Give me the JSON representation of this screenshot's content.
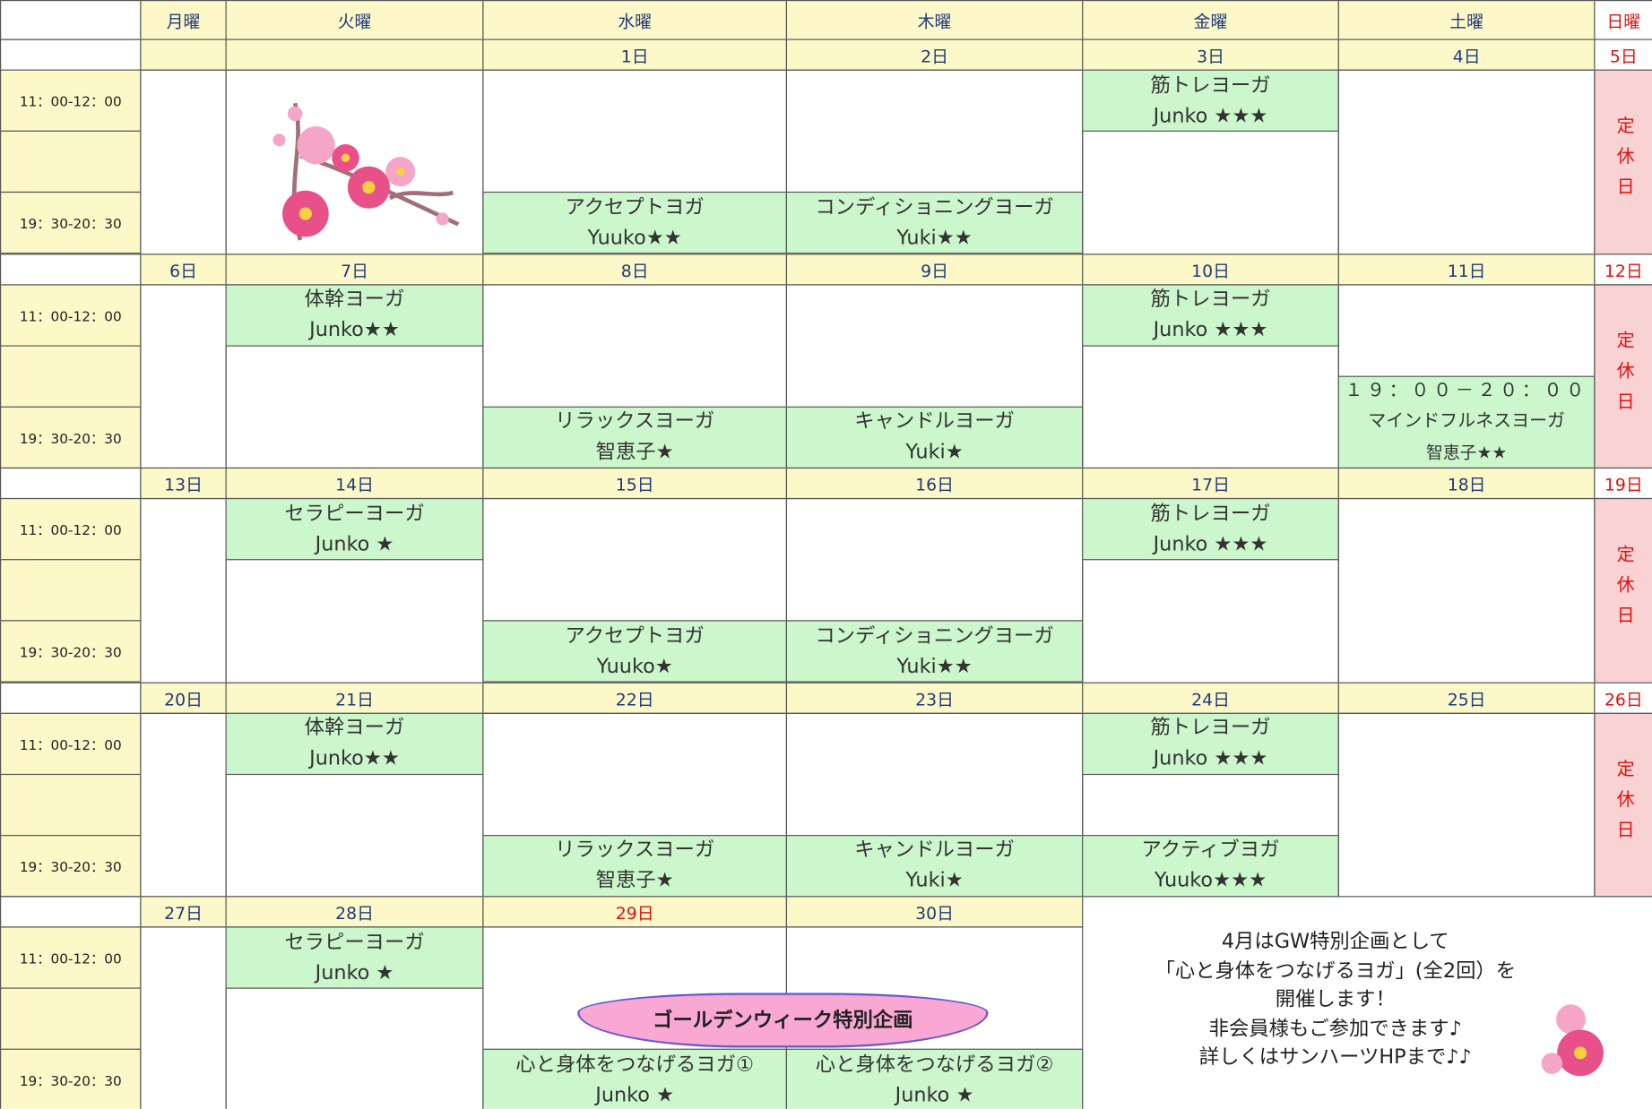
{
  "weekdays": [
    "月曜",
    "火曜",
    "水曜",
    "木曜",
    "金曜",
    "土曜",
    "日曜"
  ],
  "weeks": [
    {
      "times": [
        "11：00-12：00",
        "19：30-20：30"
      ],
      "days": [
        {
          "date": null
        },
        {
          "date": null
        },
        {
          "date": "1日",
          "evening": {
            "name": "アクセプトヨガ",
            "teacher": "Yuuko★★"
          }
        },
        {
          "date": "2日",
          "evening": {
            "name": "コンディショニングヨーガ",
            "teacher": "Yuki★★"
          }
        },
        {
          "date": "3日",
          "morning": {
            "name": "筋トレヨーガ",
            "teacher": "Junko ★★★"
          }
        },
        {
          "date": "4日"
        },
        {
          "date": "5日",
          "closed": "定休日"
        }
      ]
    },
    {
      "times": [
        "11：00-12：00",
        "19：30-20：30"
      ],
      "days": [
        {
          "date": "6日"
        },
        {
          "date": "7日",
          "morning": {
            "name": "体幹ヨーガ",
            "teacher": "Junko★★"
          }
        },
        {
          "date": "8日",
          "evening": {
            "name": "リラックスヨーガ",
            "teacher": "智恵子★"
          }
        },
        {
          "date": "9日",
          "evening": {
            "name": "キャンドルヨーガ",
            "teacher": "Yuki★"
          }
        },
        {
          "date": "10日",
          "morning": {
            "name": "筋トレヨーガ",
            "teacher": "Junko ★★★"
          }
        },
        {
          "date": "11日",
          "evening": {
            "time": "１９：００－２０：００",
            "name": "マインドフルネスヨーガ",
            "teacher": "智恵子★★"
          }
        },
        {
          "date": "12日",
          "closed": "定休日"
        }
      ]
    },
    {
      "times": [
        "11：00-12：00",
        "19：30-20：30"
      ],
      "days": [
        {
          "date": "13日"
        },
        {
          "date": "14日",
          "morning": {
            "name": "セラピーヨーガ",
            "teacher": "Junko ★"
          }
        },
        {
          "date": "15日",
          "evening": {
            "name": "アクセプトヨガ",
            "teacher": "Yuuko★"
          }
        },
        {
          "date": "16日",
          "evening": {
            "name": "コンディショニングヨーガ",
            "teacher": "Yuki★★"
          }
        },
        {
          "date": "17日",
          "morning": {
            "name": "筋トレヨーガ",
            "teacher": "Junko ★★★"
          }
        },
        {
          "date": "18日"
        },
        {
          "date": "19日",
          "closed": "定休日"
        }
      ]
    },
    {
      "times": [
        "11：00-12：00",
        "19：30-20：30"
      ],
      "days": [
        {
          "date": "20日"
        },
        {
          "date": "21日",
          "morning": {
            "name": "体幹ヨーガ",
            "teacher": "Junko★★"
          }
        },
        {
          "date": "22日",
          "evening": {
            "name": "リラックスヨーガ",
            "teacher": "智恵子★"
          }
        },
        {
          "date": "23日",
          "evening": {
            "name": "キャンドルヨーガ",
            "teacher": "Yuki★"
          }
        },
        {
          "date": "24日",
          "morning": {
            "name": "筋トレヨーガ",
            "teacher": "Junko ★★★"
          },
          "evening": {
            "name": "アクティブヨガ",
            "teacher": "Yuuko★★★"
          }
        },
        {
          "date": "25日"
        },
        {
          "date": "26日",
          "closed": "定休日"
        }
      ]
    },
    {
      "times": [
        "11：00-12：00",
        "19：30-20：30"
      ],
      "days": [
        {
          "date": "27日"
        },
        {
          "date": "28日",
          "morning": {
            "name": "セラピーヨーガ",
            "teacher": "Junko ★"
          }
        },
        {
          "date": "29日",
          "holiday": true,
          "evening": {
            "name": "心と身体をつなげるヨガ①",
            "teacher": "Junko ★"
          }
        },
        {
          "date": "30日",
          "evening": {
            "name": "心と身体をつなげるヨガ②",
            "teacher": "Junko ★"
          }
        }
      ],
      "banner": "ゴールデンウィーク特別企画",
      "note": [
        "4月はGW特別企画として",
        "「心と身体をつなげるヨガ」(全2回）を",
        "開催します！",
        "非会員様もご参加できます♪",
        "詳しくはサンハーツHPまで♪♪"
      ]
    }
  ]
}
